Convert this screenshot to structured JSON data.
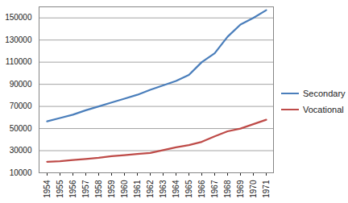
{
  "chart_data": {
    "type": "line",
    "categories": [
      "1954",
      "1955",
      "1956",
      "1957",
      "1958",
      "1959",
      "1960",
      "1961",
      "1962",
      "1963",
      "1964",
      "1965",
      "1966",
      "1967",
      "1968",
      "1969",
      "1970",
      "1971"
    ],
    "series": [
      {
        "name": "Secondary",
        "color": "#4a7ebb",
        "values": [
          56500,
          59500,
          62500,
          66500,
          70000,
          73500,
          77000,
          80500,
          85000,
          89000,
          93000,
          98500,
          110000,
          118000,
          133000,
          144000,
          150000,
          157000
        ]
      },
      {
        "name": "Vocational",
        "color": "#be4b48",
        "values": [
          20000,
          20500,
          21500,
          22500,
          23500,
          25000,
          26000,
          27000,
          28000,
          30500,
          33000,
          35000,
          38000,
          43000,
          47500,
          50000,
          54000,
          58000
        ]
      }
    ],
    "ylim": [
      10000,
      160000
    ],
    "yticks": [
      10000,
      30000,
      50000,
      70000,
      90000,
      110000,
      130000,
      150000
    ],
    "grid": true,
    "legend": "right"
  }
}
